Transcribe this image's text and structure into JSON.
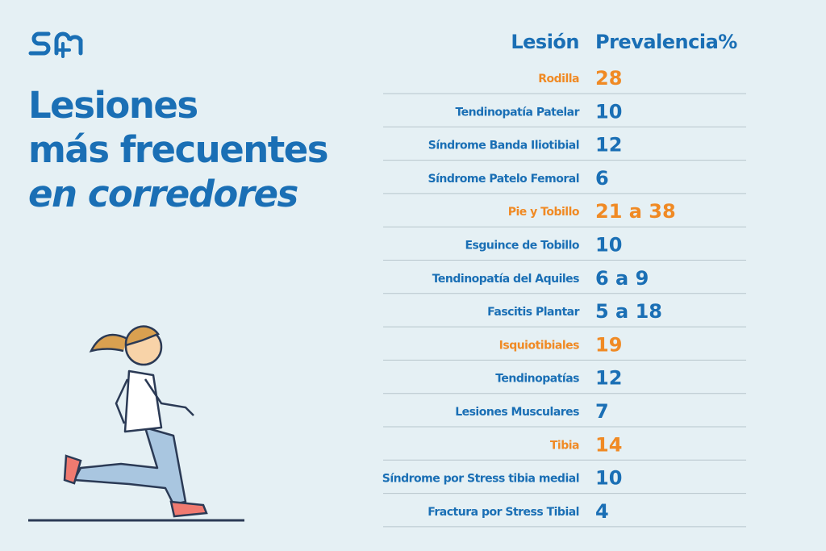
{
  "title": {
    "lines": [
      "Lesiones",
      "más frecuentes"
    ],
    "italic_line": "en corredores",
    "color": "#1a6fb5"
  },
  "table": {
    "header": [
      "Lesión",
      "Prevalencia%"
    ],
    "default_color": "#1a6fb5",
    "rows": [
      {
        "lesion": "Rodilla",
        "prevalencia": 28,
        "color": "#f08a24"
      },
      {
        "lesion": "Tendinopatía Patelar",
        "prevalencia": 10
      },
      {
        "lesion": "Síndrome Banda Iliotibial",
        "prevalencia": 12
      },
      {
        "lesion": "Síndrome Patelo Femoral",
        "prevalencia": 6
      },
      {
        "lesion": "Pie y Tobillo",
        "prevalencia": "21 a 38",
        "color": "#f08a24"
      },
      {
        "lesion": "Esguince de Tobillo",
        "prevalencia": 10
      },
      {
        "lesion": "Tendinopatía del Aquiles",
        "prevalencia": "6 a 9"
      },
      {
        "lesion": "Fascitis Plantar",
        "prevalencia": "5 a 18"
      },
      {
        "lesion": "Isquiotibiales",
        "prevalencia": 19,
        "color": "#f08a24"
      },
      {
        "lesion": "Tendinopatías",
        "prevalencia": 12
      },
      {
        "lesion": "Lesiones Musculares",
        "prevalencia": 7
      },
      {
        "lesion": "Tibia",
        "prevalencia": 14,
        "color": "#f08a24"
      },
      {
        "lesion": "Síndrome por Stress tibia medial",
        "prevalencia": 10
      },
      {
        "lesion": "Fractura por Stress Tibial",
        "prevalencia": 4
      }
    ]
  }
}
